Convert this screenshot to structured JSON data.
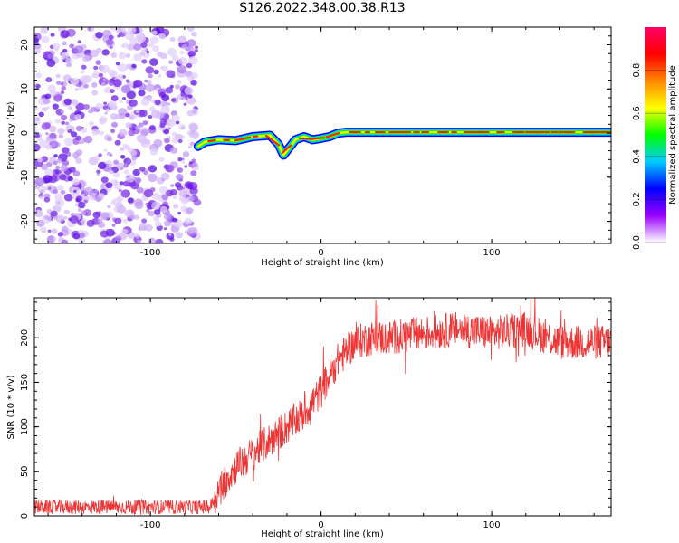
{
  "figure": {
    "title": "S126.2022.348.00.38.R13"
  },
  "chart_data": [
    {
      "type": "heatmap",
      "xlabel": "Height of straight line (km)",
      "ylabel": "Frequency (Hz)",
      "xlim": [
        -168,
        170
      ],
      "ylim": [
        -25,
        24
      ],
      "x_ticks": [
        -100,
        0,
        100
      ],
      "y_ticks": [
        -20,
        -10,
        0,
        10,
        20
      ],
      "noise_region": {
        "x_range": [
          -168,
          -72
        ],
        "y_range": [
          -25,
          24
        ]
      },
      "line_trace": {
        "x": [
          -72,
          -68,
          -60,
          -50,
          -40,
          -30,
          -25,
          -22,
          -19,
          -15,
          -10,
          -5,
          0,
          5,
          10,
          15,
          20,
          40,
          60,
          80,
          100,
          120,
          140,
          160,
          170
        ],
        "y": [
          -3,
          -2,
          -1.5,
          -1.7,
          -0.8,
          -0.5,
          -2.5,
          -5,
          -3.5,
          -1.5,
          -0.8,
          -1.5,
          -1.2,
          -0.8,
          0,
          0.2,
          0.2,
          0.2,
          0.2,
          0.2,
          0.2,
          0.2,
          0.2,
          0.2,
          0.2
        ]
      },
      "colorbar": {
        "label": "Normalized spectral amplitude",
        "range": [
          0,
          1
        ],
        "ticks": [
          "0.0",
          "0.2",
          "0.4",
          "0.6",
          "0.8"
        ],
        "colors": [
          "#ffffff",
          "#9900ff",
          "#0000ff",
          "#00ccff",
          "#00ff00",
          "#ffff00",
          "#ff8800",
          "#ff0000",
          "#ff0066"
        ]
      }
    },
    {
      "type": "line",
      "xlabel": "Height of straight line (km)",
      "ylabel": "SNR (10 * v/v)",
      "xlim": [
        -168,
        170
      ],
      "ylim": [
        0,
        245
      ],
      "x_ticks": [
        -100,
        0,
        100
      ],
      "y_ticks": [
        0,
        50,
        100,
        150,
        200
      ],
      "color": "#ee3333",
      "envelope": {
        "x": [
          -168,
          -65,
          -60,
          -50,
          -40,
          -30,
          -20,
          -10,
          0,
          10,
          20,
          30,
          40,
          60,
          80,
          100,
          120,
          140,
          160,
          170
        ],
        "y": [
          10,
          10,
          30,
          55,
          70,
          85,
          100,
          115,
          140,
          175,
          195,
          200,
          200,
          205,
          210,
          205,
          210,
          195,
          195,
          195
        ]
      },
      "noise_amplitude": 9
    }
  ]
}
